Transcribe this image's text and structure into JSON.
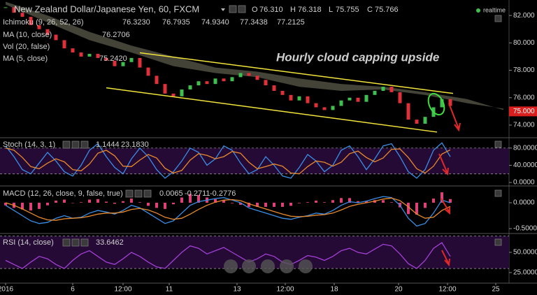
{
  "xaxis": {
    "xlim": [
      -4,
      360
    ],
    "xticks": [
      {
        "value": 0,
        "label": "2016"
      },
      {
        "value": 48,
        "label": "6"
      },
      {
        "value": 84,
        "label": "12:00"
      },
      {
        "value": 117,
        "label": "11"
      },
      {
        "value": 165.5,
        "label": "13"
      },
      {
        "value": 200,
        "label": "12:00"
      },
      {
        "value": 235,
        "label": "18"
      },
      {
        "value": 281,
        "label": "20"
      },
      {
        "value": 316,
        "label": "12:00"
      },
      {
        "value": 350.5,
        "label": "25"
      }
    ],
    "x": [
      0,
      6,
      12,
      18,
      24,
      30,
      36,
      42,
      48,
      54,
      60,
      66,
      72,
      78,
      84,
      90,
      96,
      102,
      108,
      114,
      120,
      126,
      132,
      138,
      144,
      150,
      156,
      162,
      168,
      174,
      180,
      186,
      192,
      198,
      204,
      210,
      216,
      222,
      228,
      234,
      240,
      246,
      252,
      258,
      264,
      270,
      276,
      282,
      288,
      294,
      300,
      306,
      312,
      318
    ]
  },
  "chart_data": [
    {
      "type": "candlestick",
      "title": "New Zealand Dollar/Japanese Yen, 60, FXCM",
      "ohlc": {
        "names": [
          "O",
          "H",
          "L",
          "C"
        ],
        "values": [
          76.31,
          76.318,
          75.755,
          75.766
        ],
        "value_labels": [
          "76.310",
          "76.318",
          "75.755",
          "75.766"
        ]
      },
      "indicators": [
        {
          "name": "Ichimoku (9, 26, 52, 26)",
          "values": [
            76.323,
            76.7935,
            74.934,
            77.3438,
            77.2125
          ],
          "value_labels": [
            "76.3230",
            "76.7935",
            "74.9340",
            "77.3438",
            "77.2125"
          ],
          "colors": [
            "#f4e04d",
            "#e05a8a",
            "#7ccf6a",
            "#bfbfbf",
            "#e05a8a"
          ]
        },
        {
          "name": "MA (10, close)",
          "values": [
            76.2706
          ],
          "value_labels": [
            "76.2706"
          ],
          "colors": [
            "#39d353"
          ]
        },
        {
          "name": "Vol (20, false)"
        },
        {
          "name": "MA (5, close)",
          "values": [
            75.242
          ],
          "value_labels": [
            "75.2420"
          ],
          "colors": [
            "#c0392b"
          ]
        }
      ],
      "status": "realtime",
      "annotation": "Hourly cloud capping upside",
      "ylim": [
        73.13,
        83.13
      ],
      "yticks": [
        {
          "value": 82,
          "label": "82.000"
        },
        {
          "value": 80,
          "label": "80.000"
        },
        {
          "value": 78,
          "label": "78.000"
        },
        {
          "value": 76,
          "label": "76.000"
        },
        {
          "value": 74,
          "label": "74.000"
        }
      ],
      "last_price": {
        "value": 75,
        "label": "75.000"
      },
      "up_color": "#3fbf4f",
      "down_color": "#e0303a",
      "values": [
        82.6,
        82.2,
        81.9,
        81.3,
        81.0,
        80.6,
        80.2,
        79.6,
        79.3,
        79.0,
        79.2,
        78.9,
        78.7,
        78.3,
        78.6,
        78.9,
        78.2,
        77.6,
        77.0,
        76.3,
        76.1,
        76.6,
        76.9,
        77.2,
        77.0,
        77.4,
        77.2,
        77.5,
        77.8,
        77.6,
        77.3,
        76.9,
        76.5,
        76.2,
        75.8,
        76.1,
        75.6,
        75.3,
        75.1,
        75.4,
        75.8,
        76.0,
        75.7,
        76.2,
        76.5,
        76.8,
        76.4,
        75.6,
        74.4,
        74.1,
        74.6,
        75.3,
        75.9,
        75.4
      ],
      "cloud": {
        "x": [
          0,
          30,
          60,
          90,
          120,
          150,
          180,
          210,
          240,
          270,
          300,
          330,
          356
        ],
        "span_a": [
          82.8,
          81.5,
          80.2,
          79.3,
          78.3,
          77.8,
          77.5,
          76.8,
          76.5,
          76.6,
          76.2,
          75.6,
          75.2
        ],
        "span_b": [
          83.0,
          82.0,
          80.8,
          79.8,
          79.0,
          78.2,
          77.9,
          77.4,
          77.0,
          76.8,
          76.4,
          75.9,
          75.1
        ],
        "color": "#5a5a4a"
      },
      "channel_lines": {
        "color": "#f2e43a",
        "lines": [
          {
            "x": [
              96,
              320
            ],
            "y": [
              79.28,
              76.31
            ]
          },
          {
            "x": [
              72,
              308.5
            ],
            "y": [
              76.72,
              73.49
            ]
          }
        ]
      }
    },
    {
      "type": "line",
      "title": "Stoch (14, 3, 1)",
      "legend_values": [
        1.1444,
        23.183
      ],
      "value_labels": [
        "1.1444",
        "23.1830"
      ],
      "ylim": [
        -6.4,
        102.4
      ],
      "yticks": [
        {
          "value": 80,
          "label": "80.0000"
        },
        {
          "value": 40,
          "label": "40.0000"
        },
        {
          "value": 0,
          "label": "0.0000"
        }
      ],
      "bands": [
        80,
        20
      ],
      "series": [
        {
          "color": "#3a8ee6",
          "values": [
            85,
            60,
            30,
            20,
            45,
            70,
            50,
            25,
            15,
            40,
            75,
            90,
            60,
            35,
            20,
            55,
            80,
            60,
            30,
            10,
            25,
            50,
            80,
            70,
            40,
            55,
            85,
            75,
            45,
            20,
            30,
            60,
            40,
            15,
            10,
            35,
            65,
            50,
            25,
            40,
            75,
            85,
            60,
            30,
            55,
            85,
            90,
            60,
            25,
            10,
            30,
            75,
            92,
            60
          ]
        },
        {
          "color": "#e8892b",
          "values": [
            80,
            75,
            58,
            37,
            32,
            45,
            55,
            48,
            30,
            27,
            43,
            68,
            75,
            62,
            38,
            37,
            52,
            65,
            57,
            33,
            22,
            28,
            52,
            67,
            63,
            55,
            60,
            72,
            68,
            47,
            32,
            37,
            43,
            38,
            22,
            20,
            37,
            50,
            47,
            38,
            47,
            67,
            73,
            58,
            48,
            57,
            77,
            78,
            58,
            32,
            22,
            38,
            66,
            76
          ]
        }
      ]
    },
    {
      "type": "macd",
      "title": "MACD (12, 26, close, 9, false, true)",
      "legend_values": [
        0.0065,
        -0.2711,
        -0.2776
      ],
      "ylim": [
        -0.58,
        0.31
      ],
      "yticks": [
        {
          "value": 0,
          "label": "0.0000"
        },
        {
          "value": -0.5,
          "label": "-0.5000"
        }
      ],
      "histogram": {
        "color": "#e0407a",
        "values": [
          -0.05,
          -0.1,
          -0.13,
          -0.15,
          -0.12,
          -0.05,
          0.04,
          0.06,
          0.0,
          0.01,
          0.06,
          0.07,
          0.02,
          -0.02,
          0.03,
          0.08,
          0.01,
          -0.06,
          -0.1,
          -0.12,
          -0.03,
          0.1,
          0.17,
          0.15,
          0.1,
          0.07,
          0.05,
          -0.01,
          -0.04,
          -0.08,
          -0.08,
          -0.08,
          -0.08,
          -0.08,
          -0.06,
          -0.01,
          0.01,
          0.04,
          0.01,
          0.05,
          0.09,
          0.09,
          0.03,
          0.03,
          0.05,
          0.05,
          0.01,
          -0.09,
          -0.22,
          -0.23,
          -0.1,
          0.08,
          0.2,
          0.07
        ]
      },
      "series": [
        {
          "color": "#3a8ee6",
          "values": [
            -0.05,
            -0.15,
            -0.25,
            -0.35,
            -0.4,
            -0.38,
            -0.3,
            -0.25,
            -0.3,
            -0.28,
            -0.2,
            -0.15,
            -0.18,
            -0.22,
            -0.15,
            -0.05,
            -0.1,
            -0.2,
            -0.3,
            -0.4,
            -0.35,
            -0.2,
            -0.05,
            0.02,
            0.05,
            0.08,
            0.1,
            0.05,
            0.0,
            -0.1,
            -0.15,
            -0.2,
            -0.25,
            -0.3,
            -0.32,
            -0.28,
            -0.25,
            -0.2,
            -0.22,
            -0.15,
            -0.05,
            0.02,
            0.0,
            0.03,
            0.08,
            0.12,
            0.1,
            -0.05,
            -0.3,
            -0.45,
            -0.4,
            -0.2,
            0.05,
            0.0
          ]
        },
        {
          "color": "#e8892b",
          "values": [
            0,
            -0.05,
            -0.12,
            -0.2,
            -0.28,
            -0.33,
            -0.34,
            -0.31,
            -0.3,
            -0.29,
            -0.26,
            -0.22,
            -0.2,
            -0.2,
            -0.18,
            -0.13,
            -0.11,
            -0.14,
            -0.2,
            -0.28,
            -0.32,
            -0.3,
            -0.22,
            -0.13,
            -0.05,
            0.01,
            0.05,
            0.06,
            0.04,
            -0.02,
            -0.07,
            -0.12,
            -0.17,
            -0.22,
            -0.26,
            -0.27,
            -0.26,
            -0.24,
            -0.23,
            -0.2,
            -0.14,
            -0.07,
            -0.03,
            0.0,
            0.03,
            0.07,
            0.09,
            0.04,
            -0.08,
            -0.22,
            -0.3,
            -0.28,
            -0.15,
            -0.07
          ]
        }
      ]
    },
    {
      "type": "line",
      "title": "RSI (14, close)",
      "legend_values": [
        33.6462
      ],
      "ylim": [
        12,
        72.4
      ],
      "yticks": [
        {
          "value": 50,
          "label": "50.0000"
        },
        {
          "value": 25,
          "label": "25.0000"
        }
      ],
      "bands": [
        70,
        30
      ],
      "series": [
        {
          "color": "#a33fd6",
          "values": [
            40,
            35,
            30,
            38,
            45,
            42,
            35,
            30,
            40,
            48,
            52,
            45,
            38,
            35,
            42,
            50,
            45,
            38,
            32,
            30,
            40,
            50,
            58,
            55,
            48,
            52,
            56,
            50,
            44,
            38,
            42,
            48,
            45,
            38,
            35,
            40,
            46,
            44,
            40,
            45,
            52,
            55,
            50,
            48,
            54,
            60,
            58,
            48,
            36,
            30,
            40,
            55,
            62,
            45
          ]
        }
      ]
    }
  ]
}
